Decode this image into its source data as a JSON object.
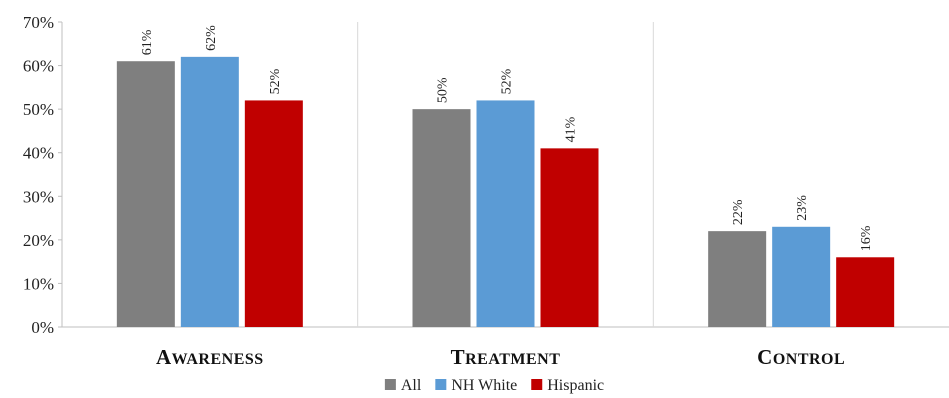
{
  "chart_data": {
    "type": "bar",
    "categories": [
      "Awareness",
      "Treatment",
      "Control"
    ],
    "series": [
      {
        "name": "All",
        "color": "#7f7f7f",
        "values": [
          61,
          50,
          22
        ],
        "labels": [
          "61%",
          "50%",
          "22%"
        ]
      },
      {
        "name": "NH White",
        "color": "#5b9bd5",
        "values": [
          62,
          52,
          23
        ],
        "labels": [
          "62%",
          "52%",
          "23%"
        ]
      },
      {
        "name": "Hispanic",
        "color": "#c00000",
        "values": [
          52,
          41,
          16
        ],
        "labels": [
          "52%",
          "41%",
          "16%"
        ]
      }
    ],
    "ylim": [
      0,
      70
    ],
    "yticks": [
      "0%",
      "10%",
      "20%",
      "30%",
      "40%",
      "50%",
      "60%",
      "70%"
    ],
    "grid": false,
    "category_separators": true,
    "legend_position": "bottom",
    "category_label_style": "small-caps"
  }
}
